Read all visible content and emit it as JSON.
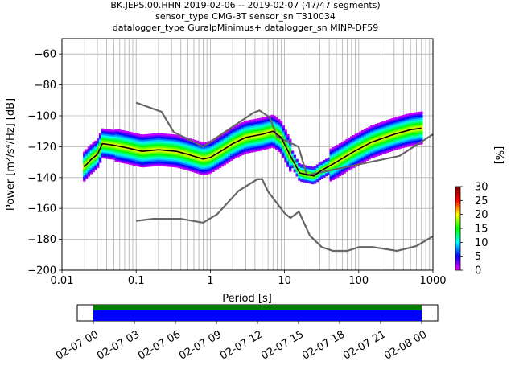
{
  "chart_data": [
    {
      "type": "heatmap",
      "title_lines": [
        "BK.JEPS.00.HHN   2019-02-06 -- 2019-02-07  (47/47 segments)",
        "sensor_type CMG-3T sensor_sn T310034",
        "datalogger_type GuralpMinimus+ datalogger_sn MINP-DF59"
      ],
      "xlabel": "Period [s]",
      "ylabel": "Power [m²/s⁴/Hz] [dB]",
      "x_scale": "log",
      "xlim": [
        0.01,
        1000
      ],
      "ylim": [
        -200,
        -50
      ],
      "x_ticks": [
        0.01,
        0.1,
        1,
        10,
        100,
        1000
      ],
      "x_tick_labels": [
        "0.01",
        "0.1",
        "1",
        "10",
        "100",
        "1000"
      ],
      "y_ticks": [
        -200,
        -180,
        -160,
        -140,
        -120,
        -100,
        -80,
        -60
      ],
      "y_tick_labels": [
        "−200",
        "−180",
        "−160",
        "−140",
        "−120",
        "−100",
        "−80",
        "−60"
      ],
      "grid": true,
      "colorbar": {
        "label": "[%]",
        "range": [
          0,
          30
        ],
        "ticks": [
          0,
          5,
          10,
          15,
          20,
          25,
          30
        ],
        "tick_labels": [
          "0",
          "5",
          "10",
          "15",
          "20",
          "25",
          "30"
        ],
        "colormap_stops": [
          "#ffffff",
          "#ff00ff",
          "#0000ff",
          "#00ffff",
          "#00ff00",
          "#ffff00",
          "#ff0000",
          "#800000"
        ]
      },
      "series": [
        {
          "role": "mode",
          "color": "#000000",
          "points": [
            [
              0.02,
              -133
            ],
            [
              0.025,
              -128
            ],
            [
              0.03,
              -125
            ],
            [
              0.035,
              -118
            ],
            [
              0.05,
              -119
            ],
            [
              0.08,
              -121
            ],
            [
              0.12,
              -123
            ],
            [
              0.2,
              -122
            ],
            [
              0.35,
              -123
            ],
            [
              0.5,
              -125
            ],
            [
              0.8,
              -128
            ],
            [
              1.0,
              -127
            ],
            [
              1.5,
              -122
            ],
            [
              2.0,
              -118
            ],
            [
              3.0,
              -114
            ],
            [
              5.0,
              -112
            ],
            [
              7.0,
              -110
            ],
            [
              9.0,
              -114
            ],
            [
              12.0,
              -126
            ],
            [
              16.0,
              -137
            ],
            [
              20.0,
              -138
            ],
            [
              25.0,
              -139
            ],
            [
              30.0,
              -136
            ],
            [
              50.0,
              -130
            ],
            [
              80.0,
              -124
            ],
            [
              150.0,
              -117
            ],
            [
              300.0,
              -112
            ],
            [
              500.0,
              -109
            ],
            [
              700.0,
              -108
            ]
          ]
        },
        {
          "role": "high_noise_model",
          "color": "#666666",
          "points": [
            [
              0.1,
              -91.5
            ],
            [
              0.22,
              -97.4
            ],
            [
              0.32,
              -110.5
            ],
            [
              0.8,
              -120
            ],
            [
              3.8,
              -98
            ],
            [
              4.6,
              -96.5
            ],
            [
              6.3,
              -101
            ],
            [
              7.9,
              -113.5
            ],
            [
              15.4,
              -120
            ],
            [
              20,
              -138.5
            ],
            [
              354.8,
              -126
            ],
            [
              1000,
              -112
            ]
          ]
        },
        {
          "role": "low_noise_model",
          "color": "#666666",
          "points": [
            [
              0.1,
              -168
            ],
            [
              0.17,
              -166.7
            ],
            [
              0.4,
              -166.7
            ],
            [
              0.8,
              -169.2
            ],
            [
              1.24,
              -163.7
            ],
            [
              2.4,
              -148.6
            ],
            [
              4.3,
              -141.1
            ],
            [
              5.0,
              -141.1
            ],
            [
              6.0,
              -149
            ],
            [
              10.0,
              -163
            ],
            [
              12.0,
              -166.2
            ],
            [
              15.6,
              -162.1
            ],
            [
              21.9,
              -177.5
            ],
            [
              31.6,
              -185
            ],
            [
              45,
              -187.5
            ],
            [
              70,
              -187.5
            ],
            [
              101,
              -185
            ],
            [
              154,
              -185
            ],
            [
              328,
              -187.5
            ],
            [
              600,
              -184.4
            ],
            [
              1000,
              -178
            ]
          ]
        }
      ]
    },
    {
      "type": "timeline",
      "x_tick_labels": [
        "02-07 00",
        "02-07 03",
        "02-07 06",
        "02-07 09",
        "02-07 12",
        "02-07 15",
        "02-07 18",
        "02-07 21",
        "02-08 00"
      ],
      "bars": [
        {
          "role": "data_available",
          "color": "#008000",
          "start": "02-07 00",
          "end": "02-08 00"
        },
        {
          "role": "psd_segments",
          "color": "#0000ff",
          "start": "02-07 00",
          "end": "02-08 00"
        }
      ]
    }
  ]
}
